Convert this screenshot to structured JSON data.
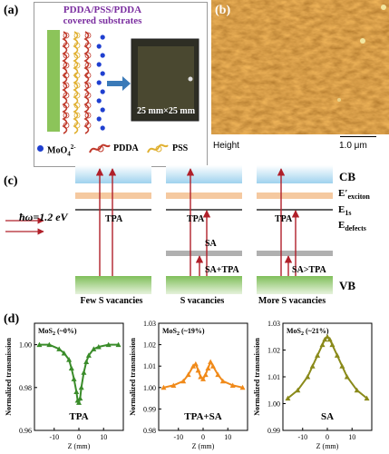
{
  "panel_a": {
    "label": "(a)",
    "title_line1": "PDDA/PSS/PDDA",
    "title_line2": "covered substrates",
    "photo_caption": "25 mm×25 mm",
    "legend_moo4": "MoO",
    "legend_moo4_sub": "4",
    "legend_moo4_sup": "2-",
    "legend_pdda": "PDDA",
    "legend_pss": "PSS",
    "colors": {
      "title": "#7b2fa0",
      "substrate": "#8cc45a",
      "pdda": "#c0392b",
      "pss": "#e0b030",
      "moo4": "#1f3fd0"
    }
  },
  "panel_b": {
    "label": "(b)",
    "channel": "Height",
    "scale_bar": "1.0 μm"
  },
  "panel_c": {
    "label": "(c)",
    "levels": {
      "cb": "CB",
      "exciton": "E′",
      "exciton_sub": "exciton",
      "e1s": "E",
      "e1s_sub": "1s",
      "defects": "E",
      "defects_sub": "defects",
      "vb": "VB"
    },
    "hw_label": "ħω=1.2 eV",
    "columns": [
      {
        "caption": "Few S vacancies",
        "tpa": "TPA"
      },
      {
        "caption": "S vacancies",
        "tpa": "TPA",
        "sa": "SA",
        "bottom": "SA+TPA"
      },
      {
        "caption": "More S vacancies",
        "tpa": "TPA",
        "bottom": "SA>TPA"
      }
    ],
    "colors": {
      "cb": "#a8d8f0",
      "exciton": "#f5c9a0",
      "vb": "#a8d08a",
      "defect": "#b0b0b0",
      "arrow": "#b0202a"
    }
  },
  "panel_d": {
    "label": "(d)",
    "ylabel": "Normalized transmission",
    "xlabel": "Z (mm)"
  },
  "chart_data": [
    {
      "type": "scatter",
      "legend": "MoS2 (~0%)",
      "legend_main": "MoS",
      "legend_sub": "2",
      "legend_rest": " (~0%)",
      "annotation": "TPA",
      "color": "#3a8c2a",
      "ylim": [
        0.96,
        1.01
      ],
      "yticks": [
        "0.96",
        "0.98",
        "1.00"
      ],
      "xlim": [
        -18,
        18
      ],
      "xticks": [
        "-10",
        "0",
        "10"
      ],
      "series": [
        {
          "x": [
            -16,
            -12,
            -8,
            -6,
            -4,
            -3,
            -2,
            -1,
            -0.5,
            0,
            0.5,
            1,
            2,
            3,
            4,
            6,
            8,
            12,
            16
          ],
          "values": [
            1.0,
            1.0,
            0.998,
            0.996,
            0.993,
            0.989,
            0.984,
            0.978,
            0.974,
            0.973,
            0.975,
            0.98,
            0.987,
            0.992,
            0.995,
            0.998,
            0.999,
            1.0,
            1.0
          ]
        }
      ]
    },
    {
      "type": "scatter",
      "legend": "MoS2 (~19%)",
      "legend_main": "MoS",
      "legend_sub": "2",
      "legend_rest": " (~19%)",
      "annotation": "TPA+SA",
      "color": "#f08a1a",
      "ylim": [
        0.98,
        1.03
      ],
      "yticks": [
        "0.98",
        "0.99",
        "1.00",
        "1.01",
        "1.02",
        "1.03"
      ],
      "xlim": [
        -18,
        18
      ],
      "xticks": [
        "-10",
        "0",
        "10"
      ],
      "series": [
        {
          "x": [
            -16,
            -12,
            -8,
            -6,
            -4,
            -3,
            -2,
            -1,
            0,
            1,
            2,
            3,
            4,
            6,
            8,
            12,
            16
          ],
          "values": [
            1.0,
            1.001,
            1.003,
            1.006,
            1.01,
            1.011,
            1.008,
            1.005,
            1.004,
            1.006,
            1.009,
            1.012,
            1.01,
            1.006,
            1.003,
            1.001,
            1.0
          ]
        }
      ]
    },
    {
      "type": "scatter",
      "legend": "MoS2 (~21%)",
      "legend_main": "MoS",
      "legend_sub": "2",
      "legend_rest": " (~21%)",
      "annotation": "SA",
      "color": "#8a8a1a",
      "ylim": [
        0.99,
        1.03
      ],
      "yticks": [
        "0.99",
        "1.00",
        "1.01",
        "1.02",
        "1.03"
      ],
      "xlim": [
        -18,
        18
      ],
      "xticks": [
        "-10",
        "0",
        "10"
      ],
      "series": [
        {
          "x": [
            -16,
            -12,
            -8,
            -6,
            -4,
            -2,
            -1,
            0,
            1,
            2,
            4,
            6,
            8,
            12,
            16
          ],
          "values": [
            1.002,
            1.005,
            1.01,
            1.014,
            1.018,
            1.022,
            1.024,
            1.025,
            1.024,
            1.022,
            1.018,
            1.014,
            1.01,
            1.005,
            1.002
          ]
        }
      ]
    }
  ]
}
